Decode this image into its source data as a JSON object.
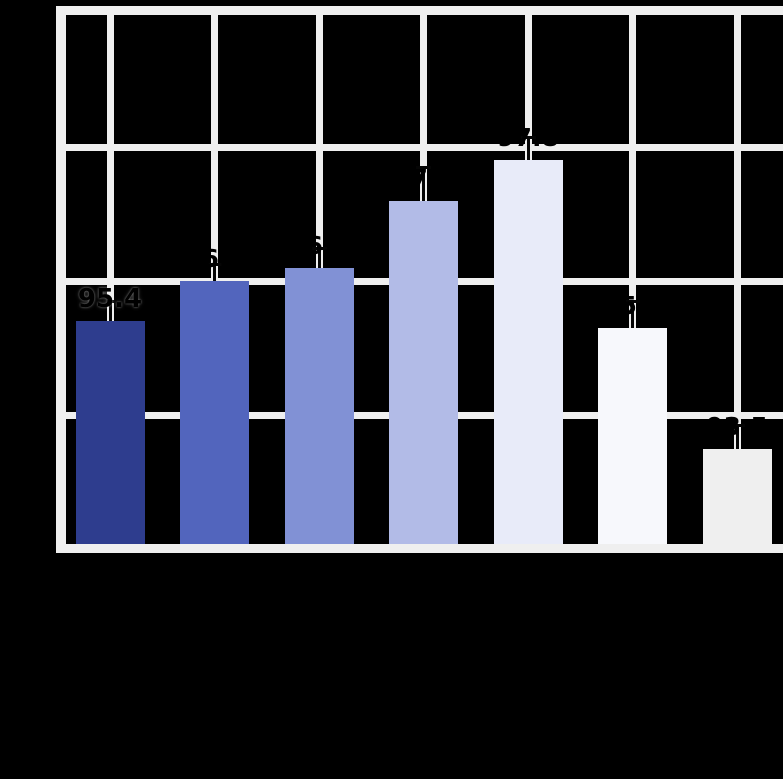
{
  "figure": {
    "background_color": "#000000",
    "frame_color": "#efefef",
    "grid_color": "#efefef",
    "label_text_color": "#000000",
    "error_bar_color": "#050505"
  },
  "chart_data": {
    "type": "bar",
    "title": "",
    "categories": [
      "",
      "",
      "",
      "",
      "",
      "",
      ""
    ],
    "values": [
      95.4,
      96.0,
      96.2,
      97.2,
      97.8,
      95.3,
      93.5
    ],
    "errors": [
      0.3,
      0.25,
      0.3,
      0.5,
      0.35,
      0.4,
      0.35
    ],
    "bar_labels": [
      "95.4",
      "96.0",
      "96.2",
      "97.2",
      "97.8",
      "95.3",
      "93.5"
    ],
    "bar_colors": [
      "#2e3d8e",
      "#5265bd",
      "#8191d5",
      "#b2bbe7",
      "#e8ebf9",
      "#f7f8fc",
      "#efefef"
    ],
    "ylim": [
      92,
      100
    ],
    "yticks": [
      92,
      94,
      96,
      98,
      100
    ],
    "grid": true,
    "legend": false,
    "highlighted_label_index": 0
  }
}
